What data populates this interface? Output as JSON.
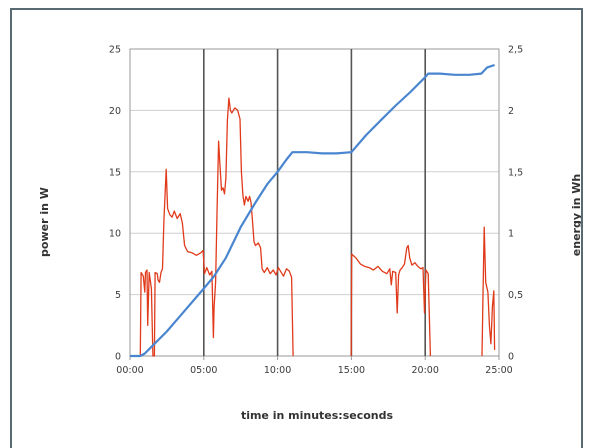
{
  "chart_data": {
    "type": "line",
    "xlabel": "time in minutes:seconds",
    "ylabel_left": "power in W",
    "ylabel_right": "energy in Wh",
    "x_unit": "minutes",
    "xlim": [
      0,
      25
    ],
    "ylim_left": [
      0,
      25
    ],
    "ylim_right": [
      0,
      2.5
    ],
    "x_ticks": [
      "00:00",
      "05:00",
      "10:00",
      "15:00",
      "20:00",
      "25:00"
    ],
    "y_left_ticks": [
      "0",
      "5",
      "10",
      "15",
      "20",
      "25"
    ],
    "y_right_ticks": [
      "0",
      "0,5",
      "1",
      "1,5",
      "2",
      "2,5"
    ],
    "grid": true,
    "vertical_markers_min": [
      5,
      10,
      15,
      20
    ],
    "series": [
      {
        "axis": "left",
        "color": "#e03a1a",
        "segments": [
          [
            [
              0.7,
              0
            ],
            [
              0.75,
              6.8
            ],
            [
              0.9,
              6.5
            ],
            [
              1.0,
              5.2
            ],
            [
              1.05,
              6.8
            ],
            [
              1.15,
              7.0
            ],
            [
              1.2,
              2.5
            ],
            [
              1.3,
              6.8
            ],
            [
              1.45,
              5.5
            ],
            [
              1.55,
              0
            ],
            [
              1.65,
              0
            ],
            [
              1.7,
              6.8
            ],
            [
              1.85,
              6.7
            ],
            [
              1.9,
              6.2
            ],
            [
              2.0,
              6.0
            ],
            [
              2.1,
              6.8
            ],
            [
              2.2,
              7.1
            ],
            [
              2.3,
              11.0
            ],
            [
              2.45,
              15.2
            ],
            [
              2.55,
              12.0
            ],
            [
              2.7,
              11.5
            ],
            [
              2.85,
              11.3
            ],
            [
              3.0,
              11.8
            ],
            [
              3.2,
              11.2
            ],
            [
              3.4,
              11.6
            ],
            [
              3.55,
              10.8
            ],
            [
              3.7,
              9.0
            ],
            [
              3.9,
              8.5
            ],
            [
              4.2,
              8.4
            ],
            [
              4.5,
              8.2
            ],
            [
              4.8,
              8.4
            ],
            [
              4.95,
              8.6
            ],
            [
              5.05,
              6.7
            ],
            [
              5.2,
              7.2
            ],
            [
              5.4,
              6.6
            ],
            [
              5.55,
              6.9
            ],
            [
              5.65,
              1.5
            ],
            [
              5.7,
              4.0
            ],
            [
              5.8,
              6.0
            ],
            [
              5.9,
              12.0
            ],
            [
              6.0,
              17.5
            ],
            [
              6.1,
              15.5
            ],
            [
              6.2,
              13.5
            ],
            [
              6.3,
              13.7
            ],
            [
              6.4,
              13.2
            ],
            [
              6.5,
              14.5
            ],
            [
              6.6,
              19.2
            ],
            [
              6.7,
              21.0
            ],
            [
              6.8,
              20.0
            ],
            [
              6.9,
              19.8
            ],
            [
              7.1,
              20.2
            ],
            [
              7.3,
              20.0
            ],
            [
              7.45,
              19.3
            ],
            [
              7.55,
              15.0
            ],
            [
              7.65,
              13.1
            ],
            [
              7.75,
              12.3
            ],
            [
              7.85,
              13.0
            ],
            [
              8.0,
              12.6
            ],
            [
              8.1,
              13.0
            ],
            [
              8.2,
              12.5
            ],
            [
              8.3,
              11.0
            ],
            [
              8.4,
              9.3
            ],
            [
              8.5,
              9.0
            ],
            [
              8.7,
              9.2
            ],
            [
              8.85,
              8.8
            ],
            [
              8.95,
              7.1
            ],
            [
              9.1,
              6.8
            ],
            [
              9.3,
              7.2
            ],
            [
              9.5,
              6.7
            ],
            [
              9.7,
              7.0
            ],
            [
              9.9,
              6.6
            ],
            [
              10.05,
              7.2
            ],
            [
              10.2,
              6.9
            ],
            [
              10.4,
              6.5
            ],
            [
              10.6,
              7.1
            ],
            [
              10.8,
              6.9
            ],
            [
              10.95,
              6.4
            ],
            [
              11.05,
              0
            ]
          ],
          [
            [
              14.98,
              0
            ],
            [
              15.02,
              8.3
            ],
            [
              15.3,
              8.0
            ],
            [
              15.6,
              7.5
            ],
            [
              15.9,
              7.3
            ],
            [
              16.2,
              7.2
            ],
            [
              16.5,
              7.0
            ],
            [
              16.8,
              7.3
            ],
            [
              17.1,
              6.9
            ],
            [
              17.4,
              6.7
            ],
            [
              17.6,
              7.1
            ],
            [
              17.7,
              5.8
            ],
            [
              17.8,
              6.9
            ],
            [
              18.0,
              6.8
            ],
            [
              18.1,
              3.5
            ],
            [
              18.2,
              6.6
            ],
            [
              18.3,
              7.0
            ],
            [
              18.45,
              7.2
            ],
            [
              18.6,
              7.5
            ],
            [
              18.75,
              8.8
            ],
            [
              18.85,
              9.0
            ],
            [
              18.95,
              8.0
            ],
            [
              19.1,
              7.4
            ],
            [
              19.3,
              7.6
            ],
            [
              19.5,
              7.3
            ],
            [
              19.7,
              7.1
            ],
            [
              19.85,
              7.2
            ],
            [
              19.95,
              3.5
            ],
            [
              20.05,
              7.0
            ],
            [
              20.2,
              6.7
            ],
            [
              20.35,
              0
            ]
          ],
          [
            [
              23.85,
              0
            ],
            [
              23.9,
              4.0
            ],
            [
              24.0,
              10.5
            ],
            [
              24.1,
              6.0
            ],
            [
              24.25,
              5.2
            ],
            [
              24.35,
              2.5
            ],
            [
              24.45,
              1.0
            ],
            [
              24.55,
              4.0
            ],
            [
              24.65,
              5.3
            ],
            [
              24.7,
              0.5
            ]
          ]
        ]
      },
      {
        "axis": "right",
        "color": "#4a86cf",
        "points": [
          [
            0,
            0
          ],
          [
            0.7,
            0
          ],
          [
            1.0,
            0.02
          ],
          [
            1.5,
            0.08
          ],
          [
            2.5,
            0.2
          ],
          [
            3.5,
            0.34
          ],
          [
            4.5,
            0.48
          ],
          [
            5.0,
            0.55
          ],
          [
            5.7,
            0.65
          ],
          [
            6.5,
            0.8
          ],
          [
            7.5,
            1.05
          ],
          [
            8.5,
            1.25
          ],
          [
            9.3,
            1.4
          ],
          [
            10.0,
            1.5
          ],
          [
            10.6,
            1.6
          ],
          [
            11.0,
            1.66
          ],
          [
            12.0,
            1.66
          ],
          [
            13.0,
            1.65
          ],
          [
            14.0,
            1.65
          ],
          [
            15.0,
            1.66
          ],
          [
            16.0,
            1.8
          ],
          [
            17.0,
            1.92
          ],
          [
            18.0,
            2.04
          ],
          [
            19.0,
            2.15
          ],
          [
            20.0,
            2.27
          ],
          [
            20.2,
            2.3
          ],
          [
            21.0,
            2.3
          ],
          [
            22.0,
            2.29
          ],
          [
            23.0,
            2.29
          ],
          [
            23.8,
            2.3
          ],
          [
            24.2,
            2.35
          ],
          [
            24.7,
            2.37
          ]
        ]
      }
    ]
  }
}
